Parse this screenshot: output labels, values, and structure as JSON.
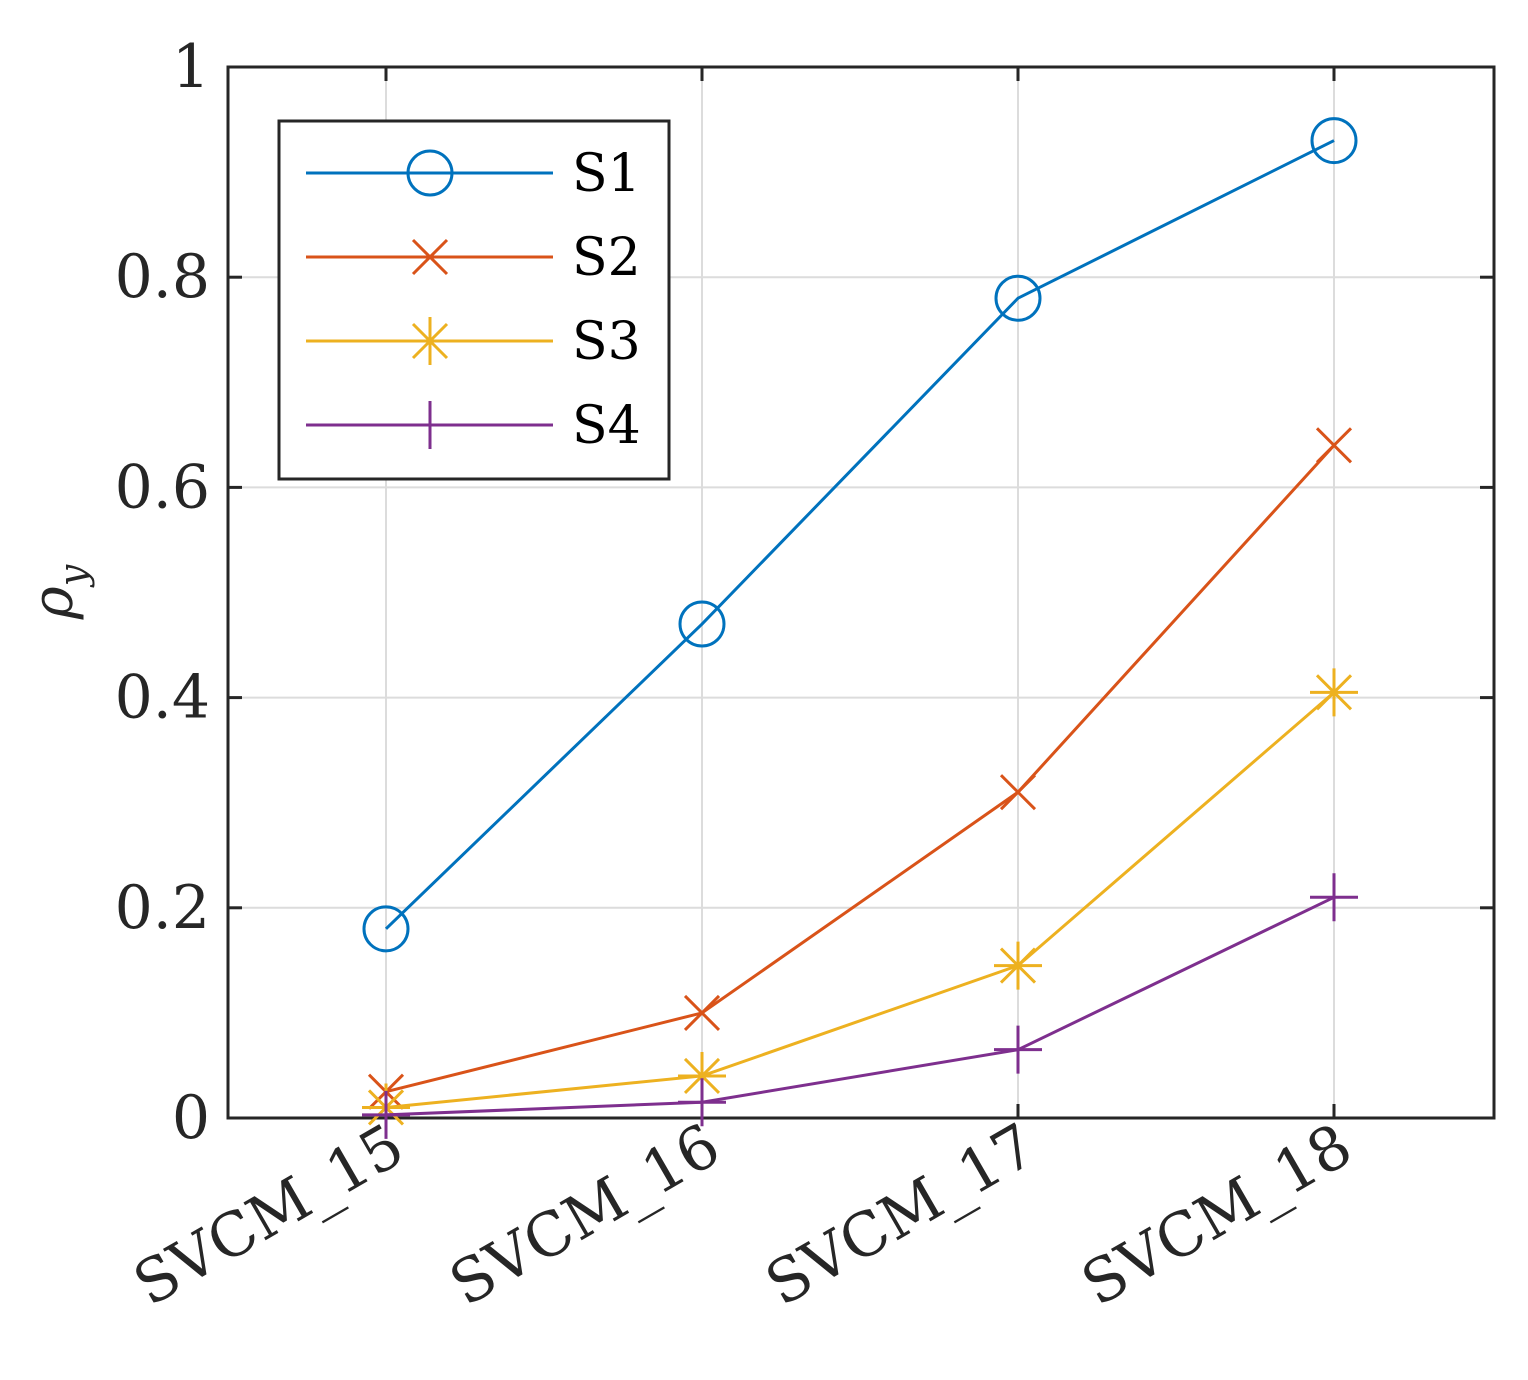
{
  "chart_data": {
    "type": "line",
    "categories": [
      "SVCM_15",
      "SVCM_16",
      "SVCM_17",
      "SVCM_18"
    ],
    "series": [
      {
        "name": "S1",
        "values": [
          0.18,
          0.47,
          0.78,
          0.93
        ],
        "color": "#0072BD",
        "marker": "circle"
      },
      {
        "name": "S2",
        "values": [
          0.025,
          0.1,
          0.31,
          0.64
        ],
        "color": "#D95319",
        "marker": "x"
      },
      {
        "name": "S3",
        "values": [
          0.01,
          0.04,
          0.145,
          0.405
        ],
        "color": "#EDB120",
        "marker": "asterisk"
      },
      {
        "name": "S4",
        "values": [
          0.003,
          0.015,
          0.065,
          0.21
        ],
        "color": "#7E2F8E",
        "marker": "plus"
      }
    ],
    "ylim": [
      0,
      1
    ],
    "yticks": [
      "0",
      "0.2",
      "0.4",
      "0.6",
      "0.8",
      "1"
    ],
    "ylabel": "ρ",
    "ylabel_subscript": "y",
    "xlabel": "",
    "grid": true,
    "legend_position": "top-left"
  }
}
